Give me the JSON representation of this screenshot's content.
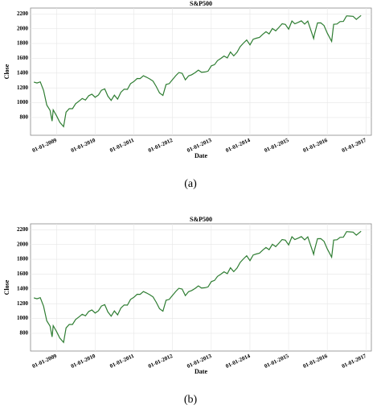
{
  "chart_data": [
    {
      "type": "line",
      "title": "S&P500",
      "xlabel": "Date",
      "ylabel": "Close",
      "caption": "(a)",
      "color": "#2e7d32",
      "grid": true,
      "x": [
        "2008-06-01",
        "2008-07-01",
        "2008-08-01",
        "2008-09-01",
        "2008-10-01",
        "2008-11-01",
        "2008-11-20",
        "2008-12-01",
        "2009-01-01",
        "2009-02-01",
        "2009-03-09",
        "2009-04-01",
        "2009-05-01",
        "2009-06-01",
        "2009-07-01",
        "2009-08-01",
        "2009-09-01",
        "2009-10-01",
        "2009-11-01",
        "2009-12-01",
        "2010-01-01",
        "2010-02-01",
        "2010-03-01",
        "2010-04-01",
        "2010-05-01",
        "2010-06-01",
        "2010-07-01",
        "2010-08-01",
        "2010-09-01",
        "2010-10-01",
        "2010-11-01",
        "2010-12-01",
        "2011-01-01",
        "2011-02-01",
        "2011-03-01",
        "2011-04-01",
        "2011-05-01",
        "2011-06-01",
        "2011-07-01",
        "2011-08-01",
        "2011-09-01",
        "2011-10-03",
        "2011-11-01",
        "2011-12-01",
        "2012-01-01",
        "2012-02-01",
        "2012-03-01",
        "2012-04-01",
        "2012-05-01",
        "2012-06-01",
        "2012-07-01",
        "2012-08-01",
        "2012-09-01",
        "2012-10-01",
        "2012-11-01",
        "2012-12-01",
        "2013-01-01",
        "2013-02-01",
        "2013-03-01",
        "2013-04-01",
        "2013-05-01",
        "2013-06-01",
        "2013-07-01",
        "2013-08-01",
        "2013-09-01",
        "2013-10-01",
        "2013-11-01",
        "2013-12-01",
        "2014-01-01",
        "2014-02-01",
        "2014-03-01",
        "2014-04-01",
        "2014-05-01",
        "2014-06-01",
        "2014-07-01",
        "2014-08-01",
        "2014-09-01",
        "2014-10-01",
        "2014-11-01",
        "2014-12-01",
        "2015-01-01",
        "2015-02-01",
        "2015-03-01",
        "2015-04-01",
        "2015-05-01",
        "2015-06-01",
        "2015-07-01",
        "2015-08-01",
        "2015-08-25",
        "2015-09-01",
        "2015-10-01",
        "2015-11-01",
        "2015-12-01",
        "2016-01-01",
        "2016-02-11",
        "2016-03-01",
        "2016-04-01",
        "2016-05-01",
        "2016-06-01",
        "2016-07-01",
        "2016-08-01",
        "2016-09-01",
        "2016-10-01",
        "2016-11-15"
      ],
      "values": [
        1280,
        1267,
        1282,
        1166,
        968,
        896,
        752,
        903,
        825,
        735,
        677,
        872,
        919,
        919,
        987,
        1020,
        1057,
        1036,
        1095,
        1115,
        1074,
        1104,
        1169,
        1187,
        1089,
        1031,
        1102,
        1049,
        1141,
        1183,
        1181,
        1258,
        1286,
        1327,
        1326,
        1364,
        1345,
        1321,
        1292,
        1219,
        1131,
        1099,
        1247,
        1258,
        1312,
        1366,
        1408,
        1398,
        1310,
        1362,
        1379,
        1407,
        1441,
        1412,
        1416,
        1426,
        1498,
        1515,
        1569,
        1598,
        1631,
        1606,
        1686,
        1633,
        1682,
        1757,
        1806,
        1848,
        1783,
        1859,
        1872,
        1884,
        1924,
        1960,
        1931,
        2003,
        1972,
        2018,
        2068,
        2059,
        1995,
        2105,
        2068,
        2086,
        2107,
        2063,
        2104,
        1972,
        1867,
        1920,
        2079,
        2080,
        2044,
        1940,
        1829,
        2060,
        2065,
        2097,
        2099,
        2174,
        2171,
        2168,
        2126,
        2180
      ],
      "xlim": [
        "2008-05-01",
        "2017-02-20"
      ],
      "ylim": [
        560,
        2280
      ],
      "xticks": [
        {
          "value": "2009-01-01",
          "label": "01-01-2009"
        },
        {
          "value": "2010-01-01",
          "label": "01-01-2010"
        },
        {
          "value": "2011-01-01",
          "label": "01-01-2011"
        },
        {
          "value": "2012-01-01",
          "label": "01-01-2012"
        },
        {
          "value": "2013-01-01",
          "label": "01-01-2013"
        },
        {
          "value": "2014-01-01",
          "label": "01-01-2014"
        },
        {
          "value": "2015-01-01",
          "label": "01-01-2015"
        },
        {
          "value": "2016-01-01",
          "label": "01-01-2016"
        },
        {
          "value": "2017-01-01",
          "label": "01-01-2017"
        }
      ],
      "yticks": [
        800,
        1000,
        1200,
        1400,
        1600,
        1800,
        2000,
        2200
      ]
    },
    {
      "type": "line",
      "title": "S&P500",
      "xlabel": "Date",
      "ylabel": "Close",
      "caption": "(b)",
      "color": "#2e7d32",
      "grid": true,
      "x": [
        "2008-06-01",
        "2008-07-01",
        "2008-08-01",
        "2008-09-01",
        "2008-10-01",
        "2008-11-01",
        "2008-11-20",
        "2008-12-01",
        "2009-01-01",
        "2009-02-01",
        "2009-03-09",
        "2009-04-01",
        "2009-05-01",
        "2009-06-01",
        "2009-07-01",
        "2009-08-01",
        "2009-09-01",
        "2009-10-01",
        "2009-11-01",
        "2009-12-01",
        "2010-01-01",
        "2010-02-01",
        "2010-03-01",
        "2010-04-01",
        "2010-05-01",
        "2010-06-01",
        "2010-07-01",
        "2010-08-01",
        "2010-09-01",
        "2010-10-01",
        "2010-11-01",
        "2010-12-01",
        "2011-01-01",
        "2011-02-01",
        "2011-03-01",
        "2011-04-01",
        "2011-05-01",
        "2011-06-01",
        "2011-07-01",
        "2011-08-01",
        "2011-09-01",
        "2011-10-03",
        "2011-11-01",
        "2011-12-01",
        "2012-01-01",
        "2012-02-01",
        "2012-03-01",
        "2012-04-01",
        "2012-05-01",
        "2012-06-01",
        "2012-07-01",
        "2012-08-01",
        "2012-09-01",
        "2012-10-01",
        "2012-11-01",
        "2012-12-01",
        "2013-01-01",
        "2013-02-01",
        "2013-03-01",
        "2013-04-01",
        "2013-05-01",
        "2013-06-01",
        "2013-07-01",
        "2013-08-01",
        "2013-09-01",
        "2013-10-01",
        "2013-11-01",
        "2013-12-01",
        "2014-01-01",
        "2014-02-01",
        "2014-03-01",
        "2014-04-01",
        "2014-05-01",
        "2014-06-01",
        "2014-07-01",
        "2014-08-01",
        "2014-09-01",
        "2014-10-01",
        "2014-11-01",
        "2014-12-01",
        "2015-01-01",
        "2015-02-01",
        "2015-03-01",
        "2015-04-01",
        "2015-05-01",
        "2015-06-01",
        "2015-07-01",
        "2015-08-01",
        "2015-08-25",
        "2015-09-01",
        "2015-10-01",
        "2015-11-01",
        "2015-12-01",
        "2016-01-01",
        "2016-02-11",
        "2016-03-01",
        "2016-04-01",
        "2016-05-01",
        "2016-06-01",
        "2016-07-01",
        "2016-08-01",
        "2016-09-01",
        "2016-10-01",
        "2016-11-15"
      ],
      "values": [
        1280,
        1267,
        1282,
        1166,
        968,
        896,
        752,
        903,
        825,
        735,
        677,
        872,
        919,
        919,
        987,
        1020,
        1057,
        1036,
        1095,
        1115,
        1074,
        1104,
        1169,
        1187,
        1089,
        1031,
        1102,
        1049,
        1141,
        1183,
        1181,
        1258,
        1286,
        1327,
        1326,
        1364,
        1345,
        1321,
        1292,
        1219,
        1131,
        1099,
        1247,
        1258,
        1312,
        1366,
        1408,
        1398,
        1310,
        1362,
        1379,
        1407,
        1441,
        1412,
        1416,
        1426,
        1498,
        1515,
        1569,
        1598,
        1631,
        1606,
        1686,
        1633,
        1682,
        1757,
        1806,
        1848,
        1783,
        1859,
        1872,
        1884,
        1924,
        1960,
        1931,
        2003,
        1972,
        2018,
        2068,
        2059,
        1995,
        2105,
        2068,
        2086,
        2107,
        2063,
        2104,
        1972,
        1867,
        1920,
        2079,
        2080,
        2044,
        1940,
        1829,
        2060,
        2065,
        2097,
        2099,
        2174,
        2171,
        2168,
        2126,
        2180
      ],
      "xlim": [
        "2008-05-01",
        "2017-02-20"
      ],
      "ylim": [
        560,
        2280
      ],
      "xticks": [
        {
          "value": "2009-01-01",
          "label": "01-01-2009"
        },
        {
          "value": "2010-01-01",
          "label": "01-01-2010"
        },
        {
          "value": "2011-01-01",
          "label": "01-01-2011"
        },
        {
          "value": "2012-01-01",
          "label": "01-01-2012"
        },
        {
          "value": "2013-01-01",
          "label": "01-01-2013"
        },
        {
          "value": "2014-01-01",
          "label": "01-01-2014"
        },
        {
          "value": "2015-01-01",
          "label": "01-01-2015"
        },
        {
          "value": "2016-01-01",
          "label": "01-01-2016"
        },
        {
          "value": "2017-01-01",
          "label": "01-01-2017"
        }
      ],
      "yticks": [
        800,
        1000,
        1200,
        1400,
        1600,
        1800,
        2000,
        2200
      ]
    }
  ]
}
